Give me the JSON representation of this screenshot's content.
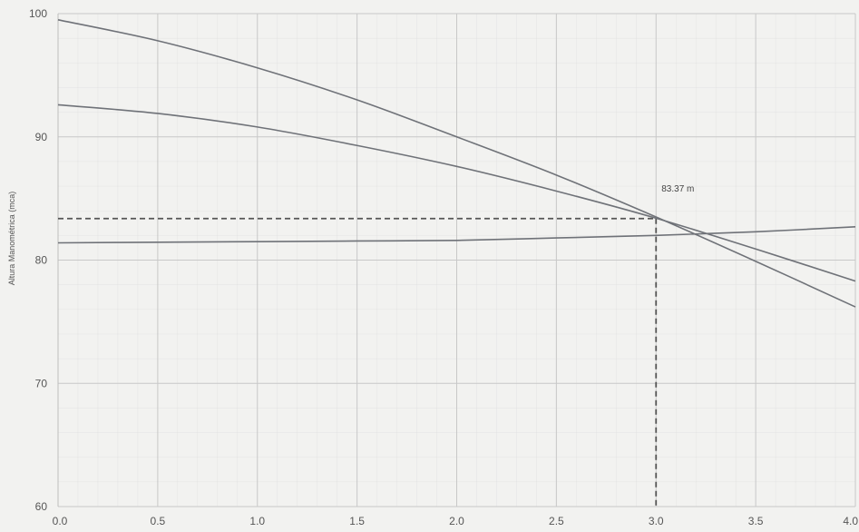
{
  "chart_data": {
    "type": "line",
    "title": "",
    "xlabel": "",
    "ylabel": "Altura Manométrica (mca)",
    "xlim": [
      0,
      4.0
    ],
    "ylim": [
      60,
      100
    ],
    "x_ticks": [
      "0.0",
      "0.5",
      "1.0",
      "1.5",
      "2.0",
      "2.5",
      "3.0",
      "3.5",
      "4.0"
    ],
    "y_ticks": [
      "60",
      "70",
      "80",
      "90",
      "100"
    ],
    "grid": true,
    "legend": "none",
    "series": [
      {
        "x": [
          0,
          0.5,
          1.0,
          1.5,
          2.0,
          2.5,
          3.0,
          3.5,
          4.0
        ],
        "y": [
          99.5,
          97.8,
          95.6,
          93.0,
          90.0,
          86.9,
          83.5,
          79.9,
          76.2
        ]
      },
      {
        "x": [
          0,
          0.5,
          1.0,
          1.5,
          2.0,
          2.5,
          3.0,
          3.5,
          4.0
        ],
        "y": [
          92.6,
          91.9,
          90.8,
          89.3,
          87.6,
          85.6,
          83.4,
          80.9,
          78.3
        ]
      },
      {
        "x": [
          0,
          0.5,
          1.0,
          1.5,
          2.0,
          2.5,
          3.0,
          3.5,
          4.0
        ],
        "y": [
          81.4,
          81.45,
          81.5,
          81.55,
          81.6,
          81.8,
          82.0,
          82.3,
          82.7
        ]
      }
    ],
    "operating_point": {
      "x": 3.0,
      "y": 83.37,
      "label": "83.37 m"
    },
    "colors": {
      "curve": "#6f7278",
      "grid": "#d8d8d8",
      "guide": "#555555",
      "background": "#f2f2f0"
    }
  }
}
